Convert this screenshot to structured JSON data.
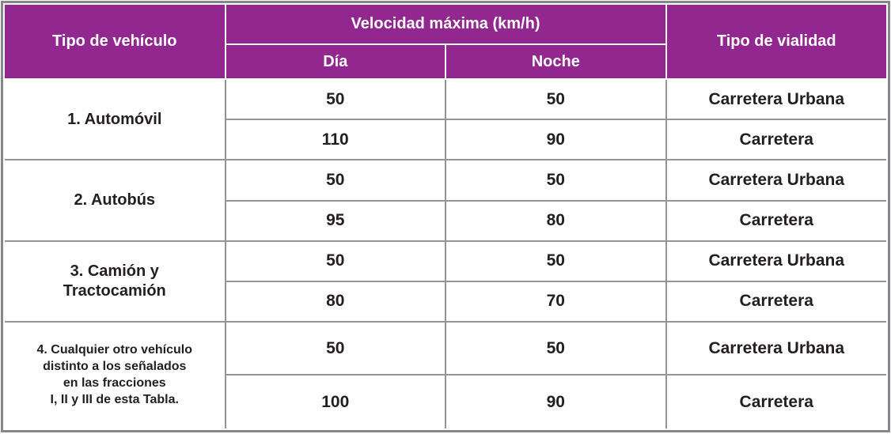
{
  "table": {
    "header": {
      "vehicle_type": "Tipo de vehículo",
      "speed_group": "Velocidad máxima (km/h)",
      "day": "Día",
      "night": "Noche",
      "road_type": "Tipo de vialidad"
    },
    "sections": [
      {
        "vehicle": "1. Automóvil",
        "vehicle_lines": [
          "1. Automóvil"
        ],
        "rows": [
          {
            "day": "50",
            "night": "50",
            "road": "Carretera Urbana"
          },
          {
            "day": "110",
            "night": "90",
            "road": "Carretera"
          }
        ]
      },
      {
        "vehicle": "2. Autobús",
        "vehicle_lines": [
          "2. Autobús"
        ],
        "rows": [
          {
            "day": "50",
            "night": "50",
            "road": "Carretera Urbana"
          },
          {
            "day": "95",
            "night": "80",
            "road": "Carretera"
          }
        ]
      },
      {
        "vehicle": "3. Camión y Tractocamión",
        "vehicle_lines": [
          "3. Camión y",
          "Tractocamión"
        ],
        "rows": [
          {
            "day": "50",
            "night": "50",
            "road": "Carretera Urbana"
          },
          {
            "day": "80",
            "night": "70",
            "road": "Carretera"
          }
        ]
      },
      {
        "vehicle": "4. Cualquier otro vehículo distinto a los señalados en las fracciones I, II y III de esta Tabla.",
        "vehicle_lines": [
          "4. Cualquier otro vehículo",
          "distinto a los señalados",
          "en las fracciones",
          "I, II y III de esta Tabla."
        ],
        "rows": [
          {
            "day": "50",
            "night": "50",
            "road": "Carretera Urbana"
          },
          {
            "day": "100",
            "night": "90",
            "road": "Carretera"
          }
        ]
      }
    ],
    "colors": {
      "header_bg": "#92278F",
      "header_text": "#FFFFFF",
      "body_text": "#231F20",
      "grid_line": "#939598",
      "outer_border": "#85878A"
    }
  }
}
